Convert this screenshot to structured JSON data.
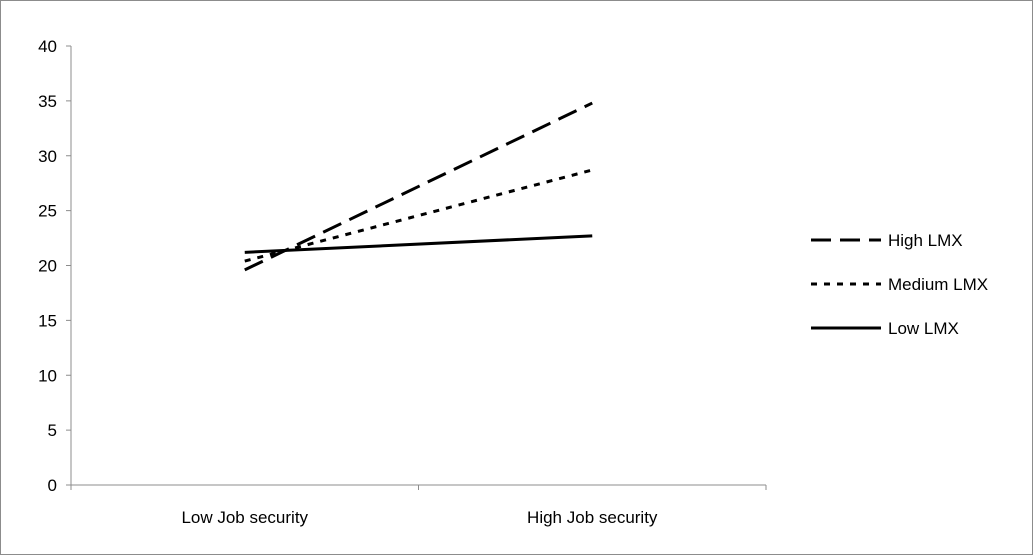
{
  "chart_data": {
    "type": "line",
    "title": "",
    "xlabel": "",
    "ylabel": "",
    "categories": [
      "Low Job security",
      "High Job security"
    ],
    "ylim": [
      0,
      40
    ],
    "yticks": [
      0,
      5,
      10,
      15,
      20,
      25,
      30,
      35,
      40
    ],
    "grid": false,
    "legend_position": "right",
    "series": [
      {
        "name": "High LMX",
        "values": [
          19.6,
          34.8
        ],
        "line_style": "dashed",
        "color": "#000000"
      },
      {
        "name": "Medium LMX",
        "values": [
          20.4,
          28.7
        ],
        "line_style": "dotted",
        "color": "#000000"
      },
      {
        "name": "Low LMX",
        "values": [
          21.2,
          22.7
        ],
        "line_style": "solid",
        "color": "#000000"
      }
    ]
  }
}
